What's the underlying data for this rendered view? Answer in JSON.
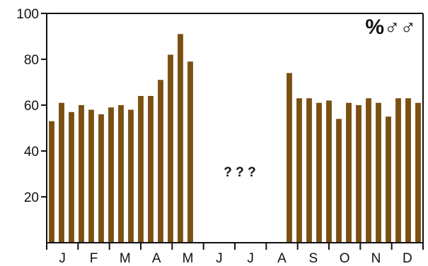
{
  "chart_data": {
    "type": "bar",
    "title": "",
    "xlabel": "",
    "ylabel": "",
    "corner_label": "%♂♂",
    "missing_note": "? ? ?",
    "ylim": [
      0,
      100
    ],
    "yticks": [
      20,
      40,
      60,
      80,
      100
    ],
    "grid": false,
    "bar_color": "#7b5013",
    "months": [
      "J",
      "F",
      "M",
      "A",
      "M",
      "J",
      "J",
      "A",
      "S",
      "O",
      "N",
      "D"
    ],
    "values": [
      53,
      61,
      57,
      60,
      58,
      56,
      59,
      60,
      58,
      64,
      64,
      71,
      82,
      91,
      79,
      null,
      null,
      null,
      null,
      null,
      null,
      null,
      null,
      null,
      74,
      63,
      63,
      61,
      62,
      54,
      61,
      60,
      63,
      61,
      55,
      63,
      63,
      61
    ]
  }
}
